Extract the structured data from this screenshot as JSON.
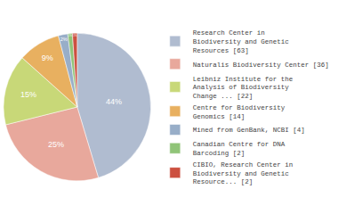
{
  "chart_data": {
    "type": "pie",
    "categories": [
      "Research Center in\nBiodiversity and Genetic\nResources [63]",
      "Naturalis Biodiversity Center [36]",
      "Leibniz Institute for the\nAnalysis of Biodiversity\nChange ... [22]",
      "Centre for Biodiversity\nGenomics [14]",
      "Mined from GenBank, NCBI [4]",
      "Canadian Centre for DNA\nBarcoding [2]",
      "CIBIO, Research Center in\nBiodiversity and Genetic\nResource... [2]"
    ],
    "values": [
      44,
      25,
      15,
      9,
      2,
      1,
      1
    ],
    "value_labels": [
      "44%",
      "25%",
      "15%",
      "9%",
      "2%",
      "1%",
      "1%"
    ],
    "data_labels": true,
    "colors": [
      "#b0bcd0",
      "#e8a89c",
      "#c8d878",
      "#e8b060",
      "#98aec8",
      "#90c478",
      "#cc5040"
    ],
    "legend": "right"
  }
}
